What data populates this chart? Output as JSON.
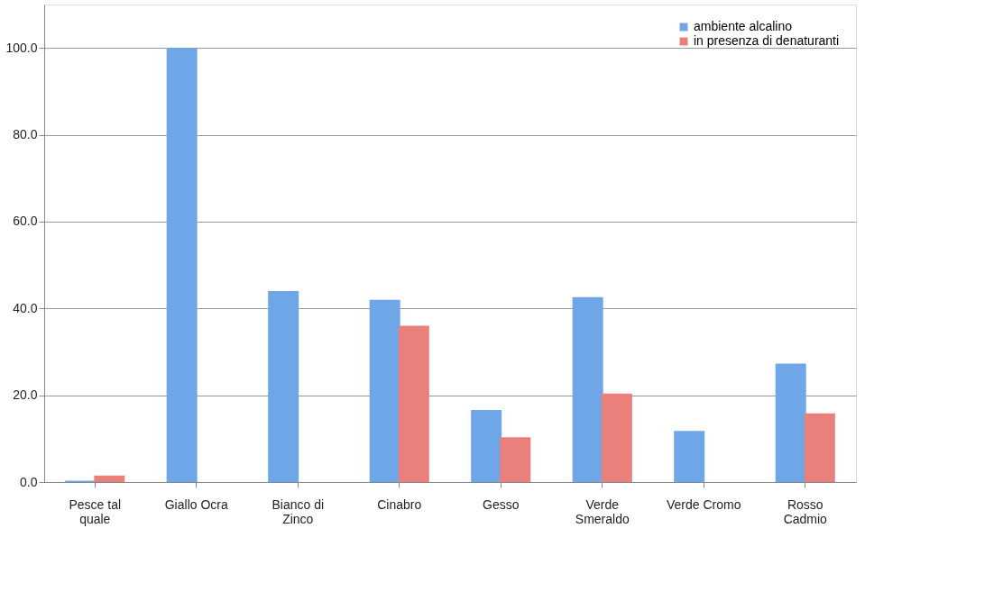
{
  "chart_data": {
    "type": "bar",
    "categories": [
      "Pesce tal quale",
      "Giallo Ocra",
      "Bianco di Zinco",
      "Cinabro",
      "Gesso",
      "Verde Smeraldo",
      "Verde Cromo",
      "Rosso Cadmio"
    ],
    "series": [
      {
        "name": "ambiente alcalino",
        "color": "#6fa6e8",
        "values": [
          0.3,
          100,
          44,
          42,
          16.6,
          42.6,
          11.8,
          27.3
        ]
      },
      {
        "name": "in presenza di denaturanti",
        "color": "#e9807c",
        "values": [
          1.5,
          null,
          null,
          36,
          10.3,
          20.4,
          null,
          15.8
        ]
      }
    ],
    "ylim": [
      0,
      110
    ],
    "yticks": [
      {
        "value": 0,
        "label": "0.0"
      },
      {
        "value": 20,
        "label": "20.0"
      },
      {
        "value": 40,
        "label": "40.0"
      },
      {
        "value": 60,
        "label": "60.0"
      },
      {
        "value": 80,
        "label": "80.0"
      },
      {
        "value": 100,
        "label": "100.0"
      }
    ],
    "grid": "y",
    "legend": "top right"
  }
}
